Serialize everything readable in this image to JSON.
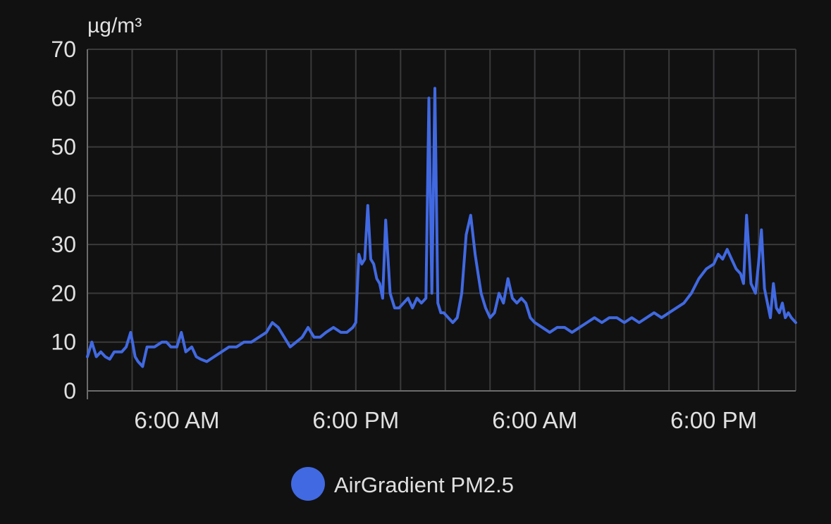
{
  "chart_data": {
    "type": "line",
    "ylabel": "µg/m³",
    "ylim": [
      0,
      70
    ],
    "yticks": [
      "0",
      "10",
      "20",
      "30",
      "40",
      "50",
      "60",
      "70"
    ],
    "xlim": [
      0,
      47.5
    ],
    "xticks": [
      {
        "x": 6,
        "label": "6:00 AM"
      },
      {
        "x": 18,
        "label": "6:00 PM"
      },
      {
        "x": 30,
        "label": "6:00 AM"
      },
      {
        "x": 42,
        "label": "6:00 PM"
      }
    ],
    "grid": true,
    "legend_position": "bottom-center",
    "series": [
      {
        "name": "AirGradient PM2.5",
        "color": "#4169e1",
        "x": [
          0,
          0.3,
          0.6,
          0.9,
          1.2,
          1.5,
          1.8,
          2.0,
          2.3,
          2.6,
          2.9,
          3.2,
          3.4,
          3.7,
          4.0,
          4.5,
          5.0,
          5.3,
          5.6,
          6.0,
          6.3,
          6.6,
          7.0,
          7.3,
          7.6,
          8.0,
          8.5,
          9.0,
          9.5,
          10.0,
          10.5,
          11.0,
          11.5,
          12.0,
          12.4,
          12.8,
          13.2,
          13.6,
          14.0,
          14.4,
          14.8,
          15.2,
          15.6,
          16.0,
          16.5,
          17.0,
          17.4,
          17.8,
          18.0,
          18.2,
          18.4,
          18.6,
          18.8,
          19.0,
          19.2,
          19.4,
          19.6,
          19.8,
          20.0,
          20.3,
          20.6,
          20.9,
          21.2,
          21.5,
          21.8,
          22.1,
          22.4,
          22.7,
          22.9,
          23.1,
          23.3,
          23.5,
          23.7,
          23.9,
          24.2,
          24.5,
          24.8,
          25.1,
          25.4,
          25.7,
          26.0,
          26.2,
          26.4,
          26.7,
          27.0,
          27.3,
          27.6,
          27.9,
          28.2,
          28.5,
          28.8,
          29.1,
          29.4,
          29.7,
          30.0,
          30.5,
          31.0,
          31.5,
          32.0,
          32.5,
          33.0,
          33.5,
          34.0,
          34.5,
          35.0,
          35.5,
          36.0,
          36.5,
          37.0,
          37.5,
          38.0,
          38.5,
          39.0,
          39.5,
          40.0,
          40.5,
          41.0,
          41.5,
          42.0,
          42.3,
          42.6,
          42.9,
          43.2,
          43.5,
          43.8,
          44.0,
          44.2,
          44.5,
          44.8,
          45.0,
          45.2,
          45.4,
          45.6,
          45.8,
          46.0,
          46.2,
          46.4,
          46.6,
          46.8,
          47.0,
          47.2,
          47.5
        ],
        "values": [
          7,
          10,
          7,
          8,
          7,
          6.5,
          8,
          8,
          8,
          9,
          12,
          7,
          6,
          5,
          9,
          9,
          10,
          10,
          9,
          9,
          12,
          8,
          9,
          7,
          6.5,
          6,
          7,
          8,
          9,
          9,
          10,
          10,
          11,
          12,
          14,
          13,
          11,
          9,
          10,
          11,
          13,
          11,
          11,
          12,
          13,
          12,
          12,
          13,
          14,
          28,
          26,
          27,
          38,
          27,
          26,
          23,
          22,
          19,
          35,
          20,
          17,
          17,
          18,
          19,
          17,
          19,
          18,
          19,
          60,
          20,
          62,
          18,
          16,
          16,
          15,
          14,
          15,
          20,
          32,
          36,
          28,
          24,
          20,
          17,
          15,
          16,
          20,
          18,
          23,
          19,
          18,
          19,
          18,
          15,
          14,
          13,
          12,
          13,
          13,
          12,
          13,
          14,
          15,
          14,
          15,
          15,
          14,
          15,
          14,
          15,
          16,
          15,
          16,
          17,
          18,
          20,
          23,
          25,
          26,
          28,
          27,
          29,
          27,
          25,
          24,
          22,
          36,
          22,
          20,
          26,
          33,
          21,
          18,
          15,
          22,
          17,
          16,
          18,
          15,
          16,
          15,
          14
        ]
      }
    ]
  }
}
